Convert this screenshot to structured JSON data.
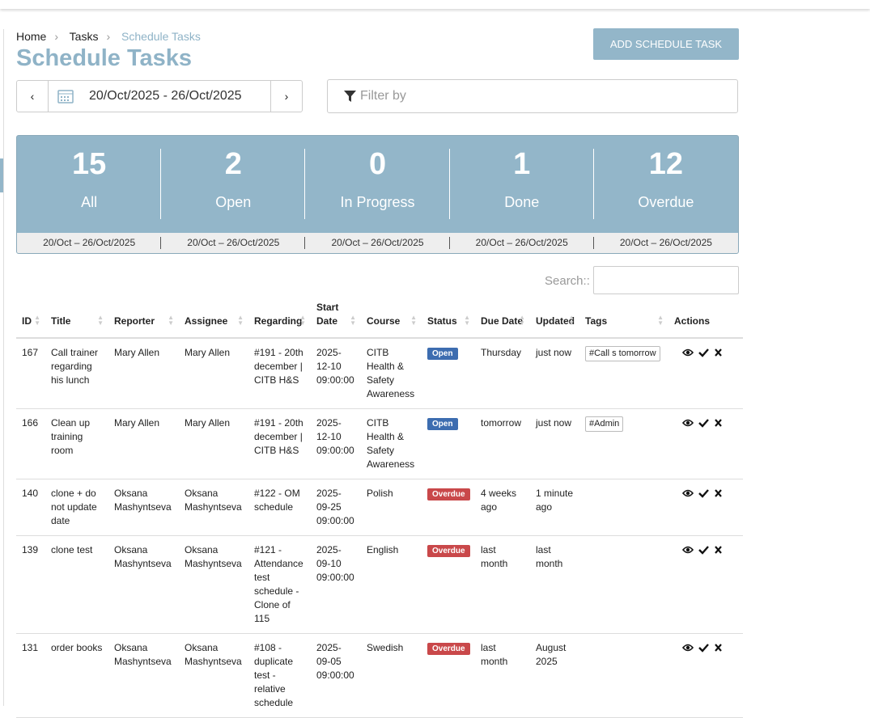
{
  "breadcrumb": [
    "Home",
    "Tasks",
    "Schedule Tasks"
  ],
  "title": "Schedule Tasks",
  "add_button": "ADD SCHEDULE TASK",
  "date_range": "20/Oct/2025 - 26/Oct/2025",
  "filter_placeholder": "Filter by",
  "summary": [
    {
      "count": "15",
      "label": "All",
      "range": "20/Oct – 26/Oct/2025"
    },
    {
      "count": "2",
      "label": "Open",
      "range": "20/Oct – 26/Oct/2025"
    },
    {
      "count": "0",
      "label": "In Progress",
      "range": "20/Oct – 26/Oct/2025"
    },
    {
      "count": "1",
      "label": "Done",
      "range": "20/Oct – 26/Oct/2025"
    },
    {
      "count": "12",
      "label": "Overdue",
      "range": "20/Oct – 26/Oct/2025"
    }
  ],
  "search_label": "Search::",
  "table": {
    "columns": [
      "ID",
      "Title",
      "Reporter",
      "Assignee",
      "Regarding",
      "Start Date",
      "Course",
      "Status",
      "Due Date",
      "Updated",
      "Tags",
      "Actions"
    ],
    "rows": [
      {
        "id": "167",
        "title": "Call trainer regarding his lunch",
        "reporter": "Mary Allen",
        "assignee": "Mary Allen",
        "regarding": "#191 - 20th december | CITB H&S",
        "start_date": "2025-12-10 09:00:00",
        "course": "CITB Health & Safety Awareness",
        "status": "Open",
        "status_color": "#3d6db0",
        "due_date": "Thursday",
        "updated": "just now",
        "tags": [
          "#Call s tomorrow"
        ]
      },
      {
        "id": "166",
        "title": "Clean up training room",
        "reporter": "Mary Allen",
        "assignee": "Mary Allen",
        "regarding": "#191 - 20th december | CITB H&S",
        "start_date": "2025-12-10 09:00:00",
        "course": "CITB Health & Safety Awareness",
        "status": "Open",
        "status_color": "#3d6db0",
        "due_date": "tomorrow",
        "updated": "just now",
        "tags": [
          "#Admin"
        ]
      },
      {
        "id": "140",
        "title": "clone + do not update date",
        "reporter": "Oksana Mashyntseva",
        "assignee": "Oksana Mashyntseva",
        "regarding": "#122 - OM schedule",
        "start_date": "2025-09-25 09:00:00",
        "course": "Polish",
        "status": "Overdue",
        "status_color": "#c9484a",
        "due_date": "4 weeks ago",
        "updated": "1 minute ago"
      },
      {
        "id": "139",
        "title": "clone test",
        "reporter": "Oksana Mashyntseva",
        "assignee": "Oksana Mashyntseva",
        "regarding": "#121 - Attendance test schedule - Clone of 115",
        "start_date": "2025-09-10 09:00:00",
        "course": "English",
        "status": "Overdue",
        "status_color": "#c9484a",
        "due_date": "last month",
        "updated": "last month"
      },
      {
        "id": "131",
        "title": "order books",
        "reporter": "Oksana Mashyntseva",
        "assignee": "Oksana Mashyntseva",
        "regarding": "#108 - duplicate test - relative schedule",
        "start_date": "2025-09-05 09:00:00",
        "course": "Swedish",
        "status": "Overdue",
        "status_color": "#c9484a",
        "due_date": "last month",
        "updated": "August 2025"
      }
    ]
  }
}
